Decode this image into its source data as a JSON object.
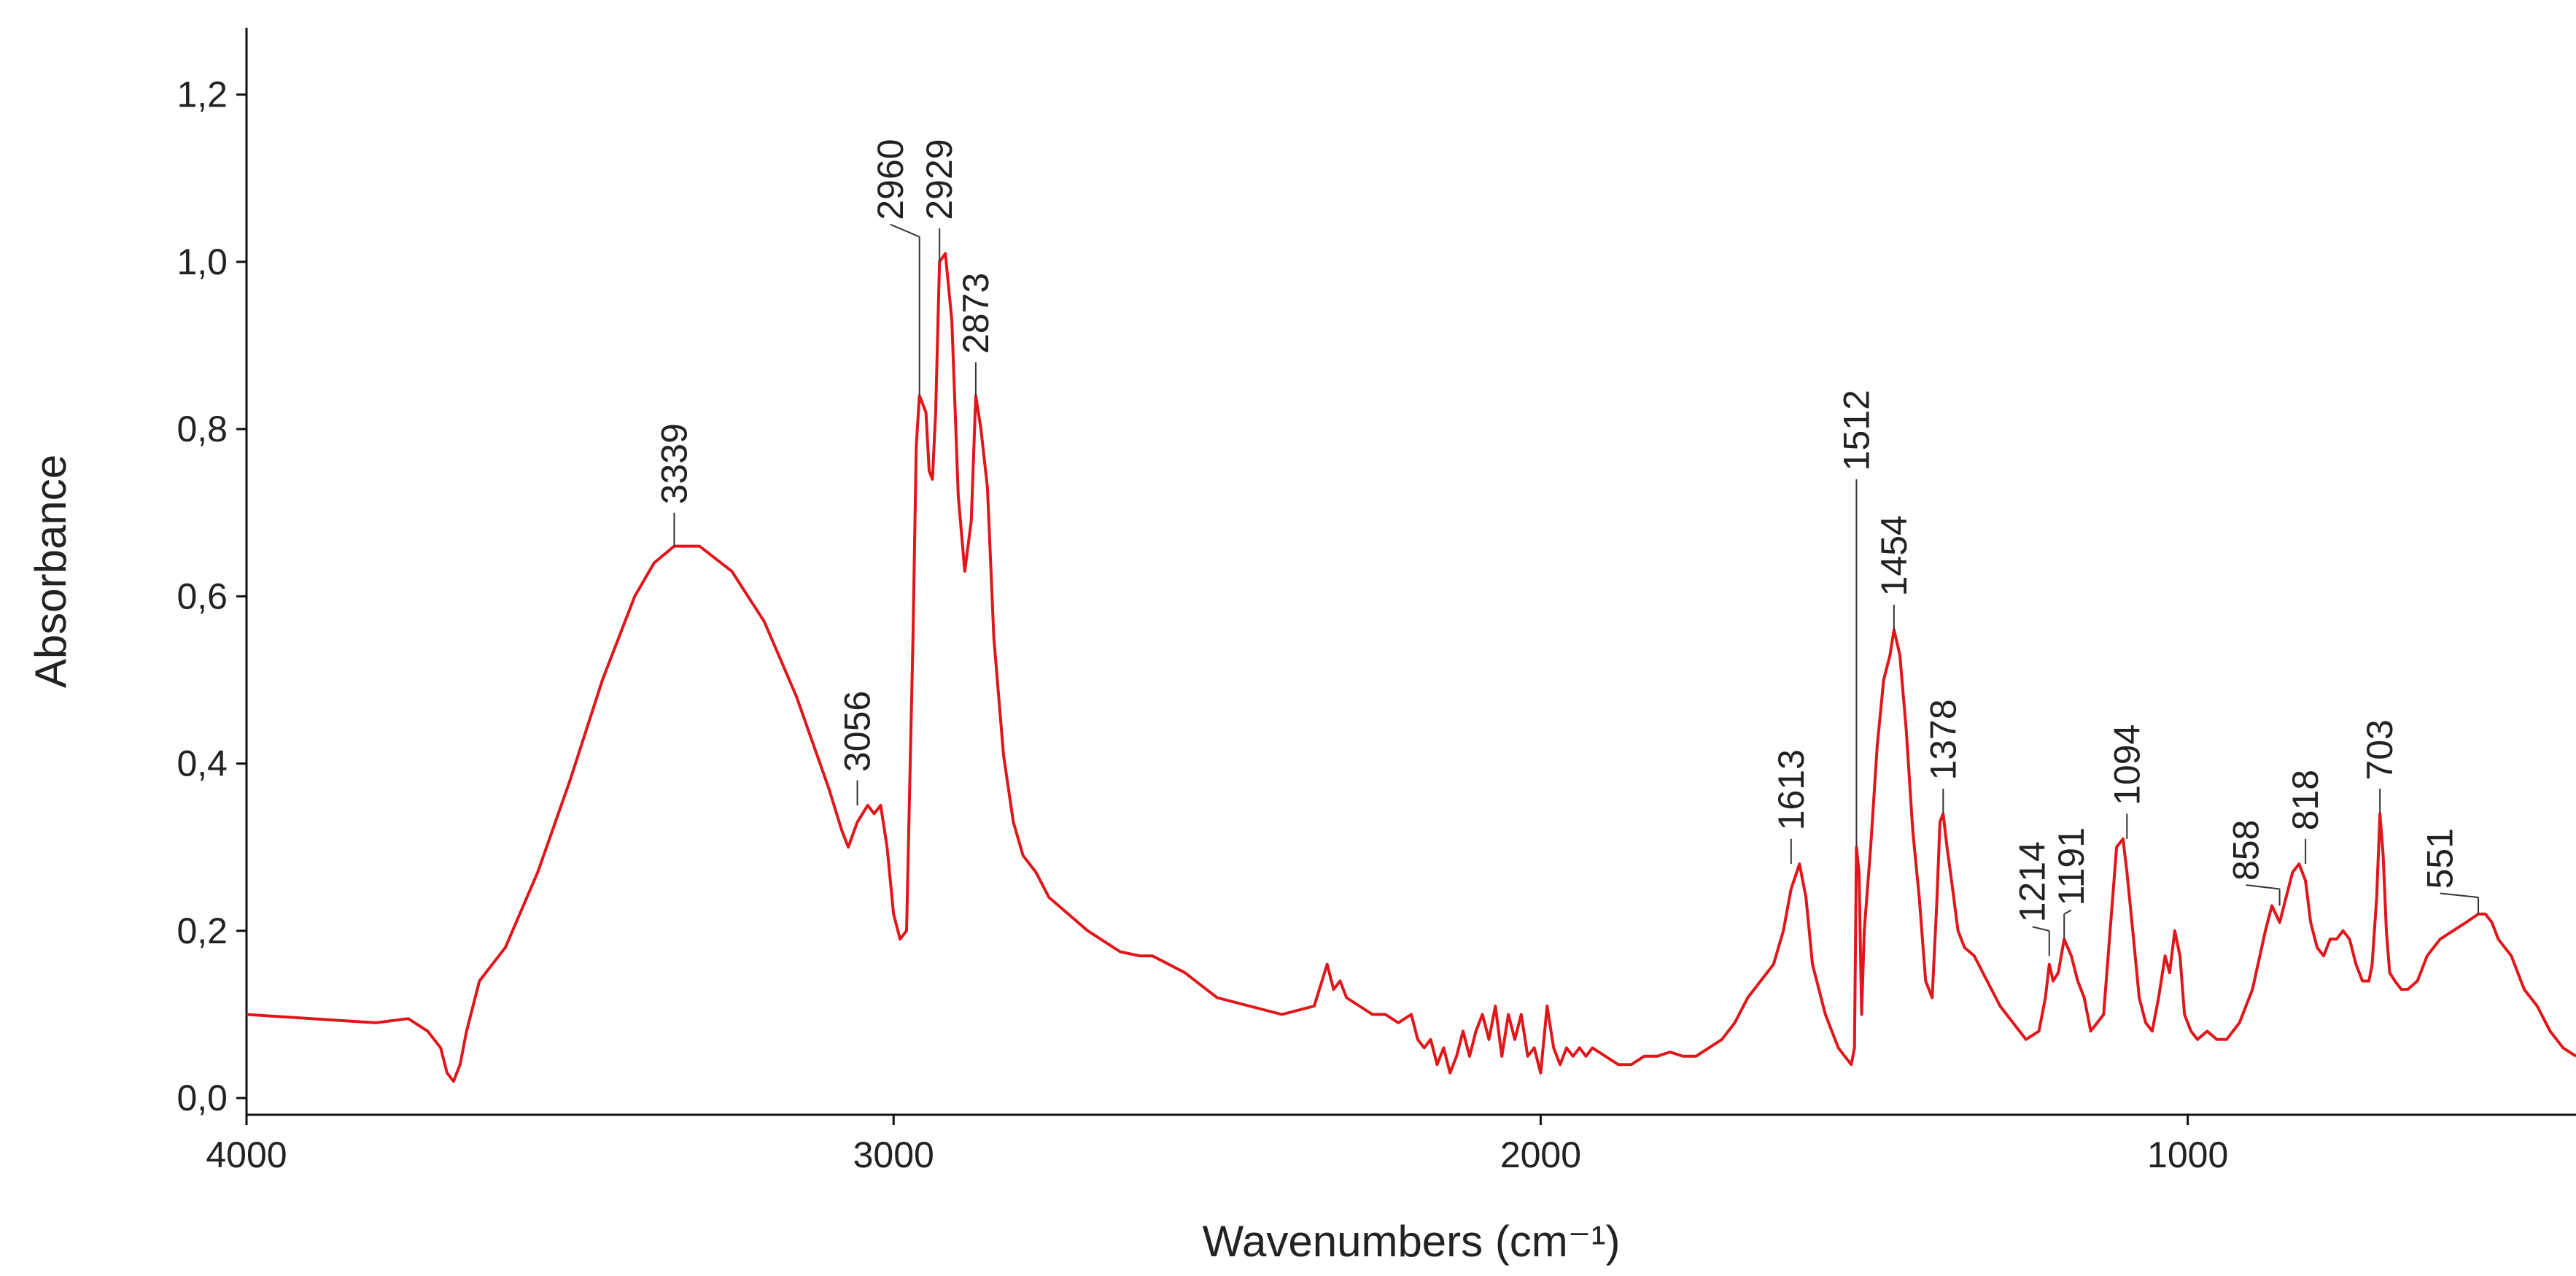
{
  "chart_data": {
    "type": "line",
    "title": "",
    "xlabel": "Wavenumbers (cm⁻¹)",
    "ylabel": "Absorbance",
    "xlim": [
      4000,
      400
    ],
    "ylim": [
      -0.02,
      1.28
    ],
    "x_reversed": true,
    "grid": false,
    "x_ticks": [
      4000,
      3000,
      2000,
      1000
    ],
    "x_tick_labels": [
      "4000",
      "3000",
      "2000",
      "1000"
    ],
    "y_ticks": [
      0.0,
      0.2,
      0.4,
      0.6,
      0.8,
      1.0,
      1.2
    ],
    "y_tick_labels": [
      "0,0",
      "0,2",
      "0,4",
      "0,6",
      "0,8",
      "1,0",
      "1,2"
    ],
    "series": [
      {
        "color": "#e0161a",
        "x": [
          4000,
          3900,
          3800,
          3750,
          3720,
          3700,
          3690,
          3680,
          3670,
          3660,
          3640,
          3620,
          3600,
          3550,
          3500,
          3450,
          3400,
          3370,
          3339,
          3300,
          3250,
          3200,
          3150,
          3100,
          3080,
          3070,
          3056,
          3040,
          3030,
          3020,
          3010,
          3000,
          2990,
          2980,
          2970,
          2965,
          2960,
          2950,
          2945,
          2940,
          2935,
          2929,
          2920,
          2910,
          2900,
          2890,
          2880,
          2873,
          2865,
          2855,
          2845,
          2830,
          2815,
          2800,
          2780,
          2760,
          2700,
          2650,
          2620,
          2600,
          2550,
          2500,
          2450,
          2400,
          2350,
          2330,
          2320,
          2310,
          2300,
          2280,
          2260,
          2240,
          2220,
          2200,
          2190,
          2180,
          2170,
          2160,
          2150,
          2140,
          2130,
          2120,
          2110,
          2100,
          2090,
          2080,
          2070,
          2060,
          2050,
          2040,
          2030,
          2020,
          2010,
          2000,
          1990,
          1980,
          1970,
          1960,
          1950,
          1940,
          1930,
          1920,
          1900,
          1880,
          1860,
          1840,
          1820,
          1800,
          1780,
          1760,
          1740,
          1720,
          1700,
          1680,
          1660,
          1640,
          1625,
          1613,
          1600,
          1590,
          1580,
          1560,
          1540,
          1530,
          1520,
          1515,
          1512,
          1508,
          1504,
          1500,
          1490,
          1480,
          1470,
          1460,
          1454,
          1445,
          1435,
          1425,
          1415,
          1405,
          1395,
          1388,
          1383,
          1378,
          1372,
          1365,
          1355,
          1345,
          1330,
          1310,
          1290,
          1270,
          1250,
          1230,
          1220,
          1214,
          1208,
          1200,
          1191,
          1180,
          1170,
          1160,
          1150,
          1140,
          1130,
          1120,
          1110,
          1100,
          1094,
          1085,
          1075,
          1065,
          1055,
          1045,
          1035,
          1028,
          1020,
          1012,
          1005,
          995,
          985,
          970,
          955,
          940,
          920,
          900,
          880,
          870,
          858,
          848,
          838,
          828,
          818,
          810,
          800,
          790,
          780,
          770,
          760,
          750,
          740,
          730,
          720,
          715,
          708,
          703,
          698,
          693,
          688,
          680,
          670,
          660,
          645,
          630,
          610,
          590,
          570,
          551,
          540,
          530,
          520,
          500,
          480,
          460,
          440,
          420,
          400
        ],
        "y": [
          0.1,
          0.095,
          0.09,
          0.095,
          0.08,
          0.06,
          0.03,
          0.02,
          0.04,
          0.08,
          0.14,
          0.16,
          0.18,
          0.27,
          0.38,
          0.5,
          0.6,
          0.64,
          0.66,
          0.66,
          0.63,
          0.57,
          0.48,
          0.37,
          0.32,
          0.3,
          0.33,
          0.35,
          0.34,
          0.35,
          0.3,
          0.22,
          0.19,
          0.2,
          0.55,
          0.78,
          0.84,
          0.82,
          0.75,
          0.74,
          0.82,
          1.0,
          1.01,
          0.93,
          0.72,
          0.63,
          0.69,
          0.84,
          0.8,
          0.73,
          0.55,
          0.41,
          0.33,
          0.29,
          0.27,
          0.24,
          0.2,
          0.175,
          0.17,
          0.17,
          0.15,
          0.12,
          0.11,
          0.1,
          0.11,
          0.16,
          0.13,
          0.14,
          0.12,
          0.11,
          0.1,
          0.1,
          0.09,
          0.1,
          0.07,
          0.06,
          0.07,
          0.04,
          0.06,
          0.03,
          0.05,
          0.08,
          0.05,
          0.08,
          0.1,
          0.07,
          0.11,
          0.05,
          0.1,
          0.07,
          0.1,
          0.05,
          0.06,
          0.03,
          0.11,
          0.06,
          0.04,
          0.06,
          0.05,
          0.06,
          0.05,
          0.06,
          0.05,
          0.04,
          0.04,
          0.05,
          0.05,
          0.055,
          0.05,
          0.05,
          0.06,
          0.07,
          0.09,
          0.12,
          0.14,
          0.16,
          0.2,
          0.25,
          0.28,
          0.24,
          0.16,
          0.1,
          0.06,
          0.05,
          0.04,
          0.06,
          0.3,
          0.27,
          0.1,
          0.2,
          0.3,
          0.42,
          0.5,
          0.53,
          0.56,
          0.53,
          0.44,
          0.32,
          0.24,
          0.14,
          0.12,
          0.23,
          0.33,
          0.34,
          0.3,
          0.26,
          0.2,
          0.18,
          0.17,
          0.14,
          0.11,
          0.09,
          0.07,
          0.08,
          0.12,
          0.16,
          0.14,
          0.15,
          0.19,
          0.17,
          0.14,
          0.12,
          0.08,
          0.09,
          0.1,
          0.2,
          0.3,
          0.31,
          0.27,
          0.2,
          0.12,
          0.09,
          0.08,
          0.12,
          0.17,
          0.15,
          0.2,
          0.17,
          0.1,
          0.08,
          0.07,
          0.08,
          0.07,
          0.07,
          0.09,
          0.13,
          0.2,
          0.23,
          0.21,
          0.24,
          0.27,
          0.28,
          0.26,
          0.21,
          0.18,
          0.17,
          0.19,
          0.19,
          0.2,
          0.19,
          0.16,
          0.14,
          0.14,
          0.16,
          0.24,
          0.34,
          0.29,
          0.2,
          0.15,
          0.14,
          0.13,
          0.13,
          0.14,
          0.17,
          0.19,
          0.2,
          0.21,
          0.22,
          0.22,
          0.21,
          0.19,
          0.17,
          0.13,
          0.11,
          0.08,
          0.06,
          0.05
        ]
      }
    ],
    "annotations": [
      {
        "label": "3339",
        "x": 3339,
        "y": 0.66,
        "line_top": 0.7,
        "text_y": 0.71,
        "text_x": 3339
      },
      {
        "label": "3056",
        "x": 3056,
        "y": 0.35,
        "line_top": 0.38,
        "text_y": 0.39,
        "text_x": 3056
      },
      {
        "label": "2960",
        "x": 2960,
        "y": 0.84,
        "line_top": 1.03,
        "text_y": 1.05,
        "text_x": 3005
      },
      {
        "label": "2929",
        "x": 2929,
        "y": 1.0,
        "line_top": 1.04,
        "text_y": 1.05,
        "text_x": 2929
      },
      {
        "label": "2873",
        "x": 2873,
        "y": 0.84,
        "line_top": 0.88,
        "text_y": 0.89,
        "text_x": 2873
      },
      {
        "label": "1613",
        "x": 1613,
        "y": 0.28,
        "line_top": 0.31,
        "text_y": 0.32,
        "text_x": 1613
      },
      {
        "label": "1512",
        "x": 1512,
        "y": 0.3,
        "line_top": 0.74,
        "text_y": 0.75,
        "text_x": 1512
      },
      {
        "label": "1454",
        "x": 1454,
        "y": 0.56,
        "line_top": 0.59,
        "text_y": 0.6,
        "text_x": 1454
      },
      {
        "label": "1378",
        "x": 1378,
        "y": 0.34,
        "line_top": 0.37,
        "text_y": 0.38,
        "text_x": 1378
      },
      {
        "label": "1214",
        "x": 1214,
        "y": 0.17,
        "line_top": 0.2,
        "text_y": 0.21,
        "text_x": 1240
      },
      {
        "label": "1191",
        "x": 1191,
        "y": 0.19,
        "line_top": 0.22,
        "text_y": 0.23,
        "text_x": 1180
      },
      {
        "label": "1094",
        "x": 1094,
        "y": 0.31,
        "line_top": 0.34,
        "text_y": 0.35,
        "text_x": 1094
      },
      {
        "label": "858",
        "x": 858,
        "y": 0.23,
        "line_top": 0.25,
        "text_y": 0.26,
        "text_x": 910
      },
      {
        "label": "818",
        "x": 818,
        "y": 0.28,
        "line_top": 0.31,
        "text_y": 0.32,
        "text_x": 818
      },
      {
        "label": "703",
        "x": 703,
        "y": 0.34,
        "line_top": 0.37,
        "text_y": 0.38,
        "text_x": 703
      },
      {
        "label": "551",
        "x": 551,
        "y": 0.22,
        "line_top": 0.24,
        "text_y": 0.25,
        "text_x": 610
      }
    ]
  }
}
